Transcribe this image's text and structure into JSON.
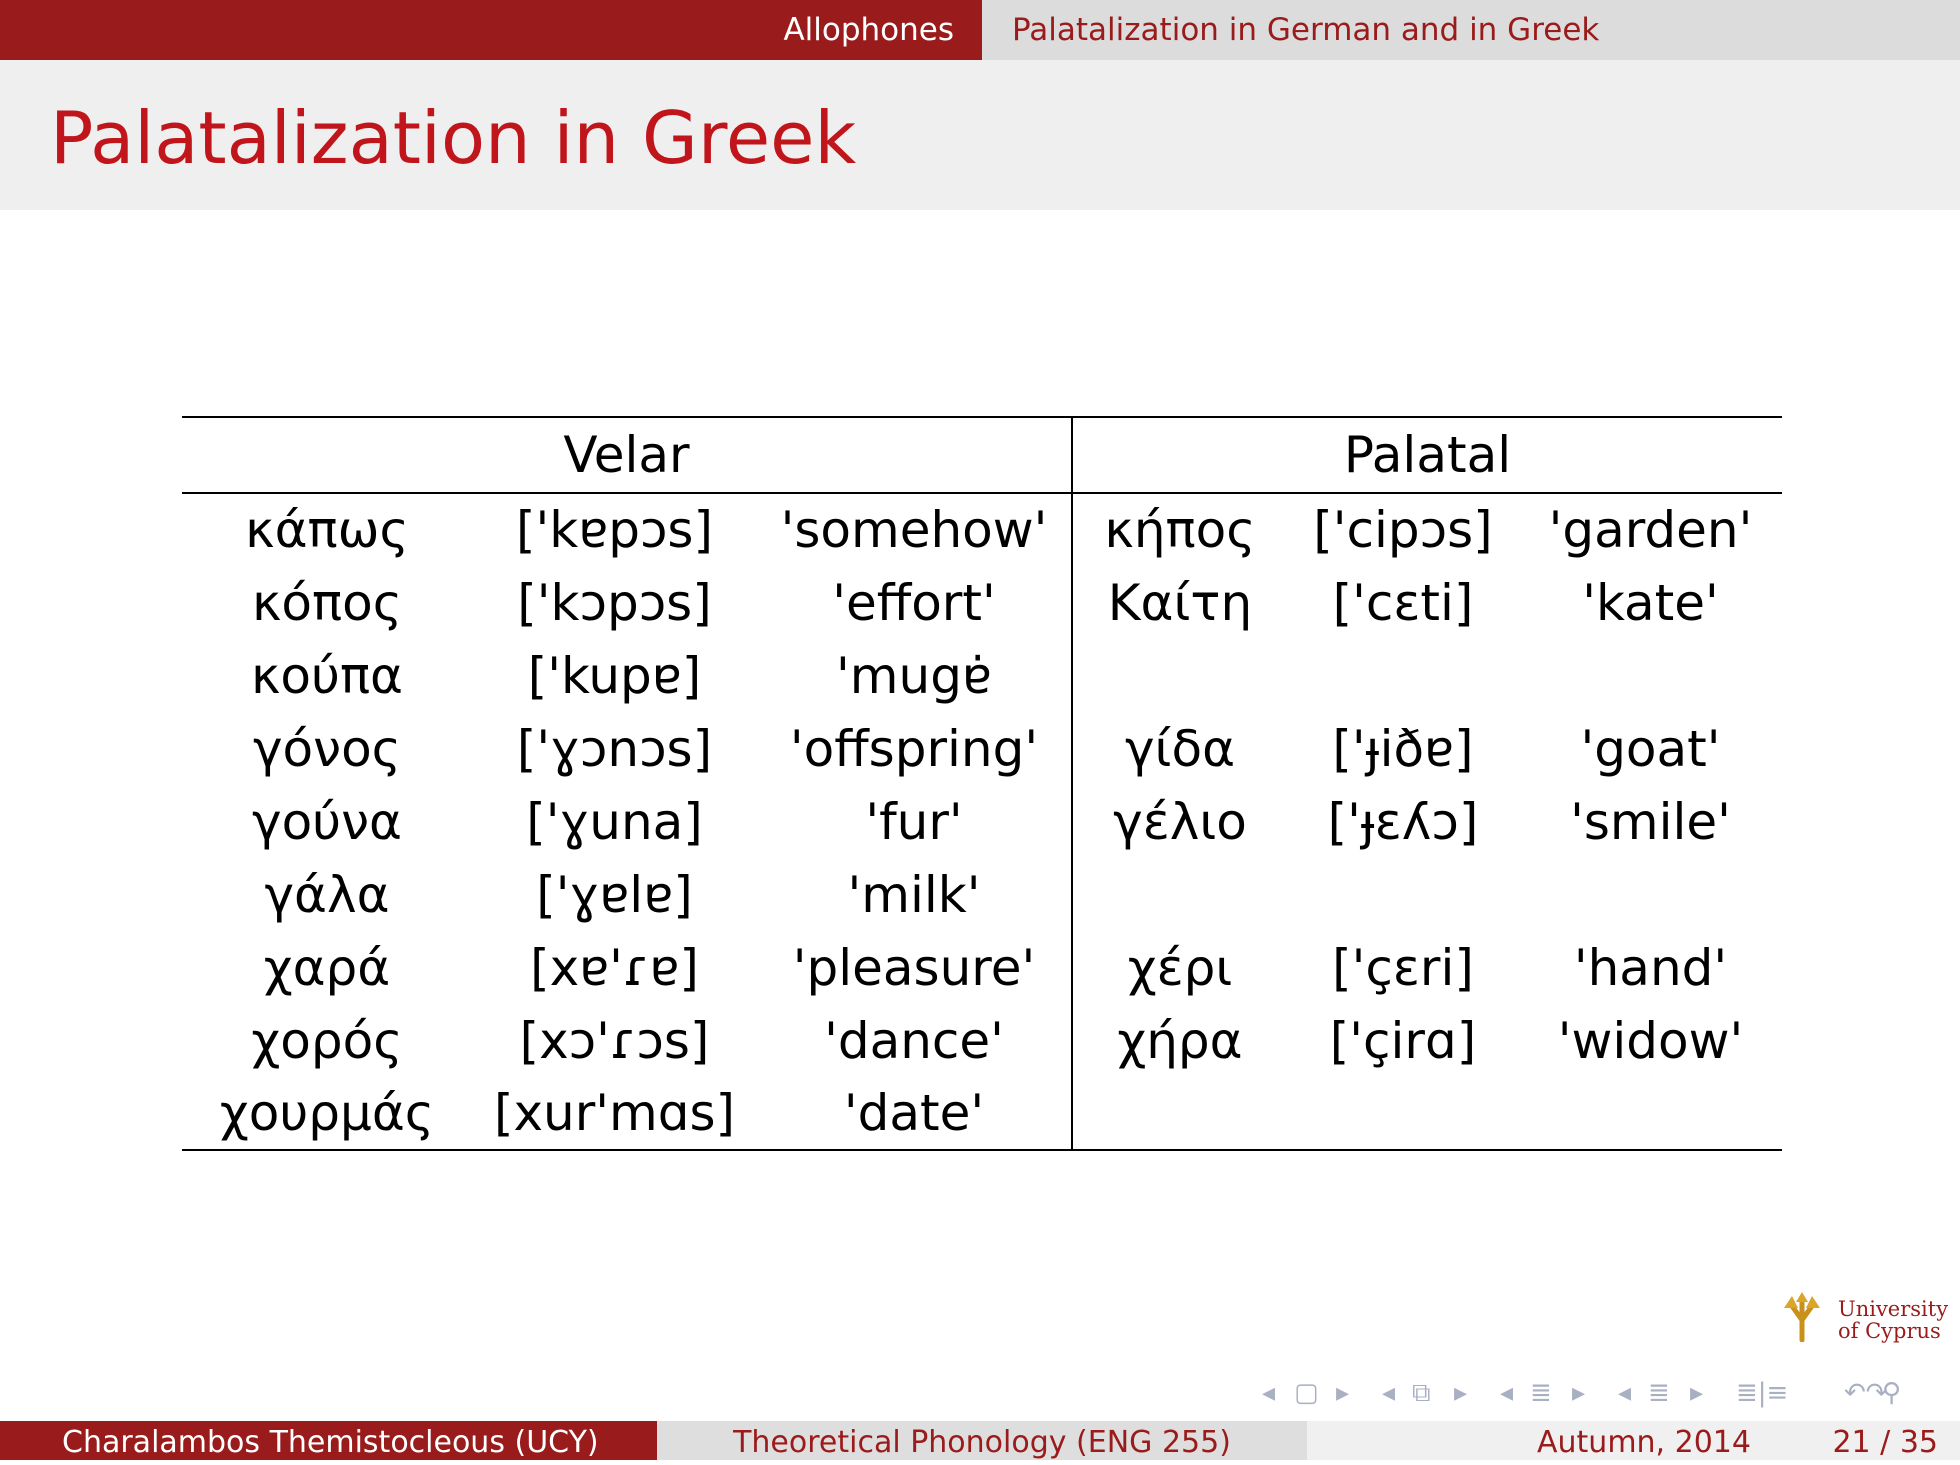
{
  "header": {
    "section": "Allophones",
    "subsection": "Palatalization in German and in Greek"
  },
  "slide": {
    "title": "Palatalization in Greek"
  },
  "table": {
    "headers": {
      "velar": "Velar",
      "palatal": "Palatal"
    },
    "rows": [
      {
        "velar": [
          "κάπως",
          "['kɐpɔs]",
          "'somehow'"
        ],
        "palatal": [
          "κήπος",
          "['cipɔs]",
          "'garden'"
        ]
      },
      {
        "velar": [
          "κόπος",
          "['kɔpɔs]",
          "'effort'"
        ],
        "palatal": [
          "Καίτη",
          "['cɛti]",
          "'kate'"
        ]
      },
      {
        "velar": [
          "κούπα",
          "['kupɐ]",
          "'mugɐ̇"
        ],
        "palatal": [
          "",
          "",
          ""
        ]
      },
      {
        "velar": [
          "γόνος",
          "['ɣɔnɔs]",
          "'offspring'"
        ],
        "palatal": [
          "γίδα",
          "['ɟiðɐ]",
          "'goat'"
        ]
      },
      {
        "velar": [
          "γούνα",
          "['ɣuna]",
          "'fur'"
        ],
        "palatal": [
          "γέλιο",
          "['ɟɛʎɔ]",
          "'smile'"
        ]
      },
      {
        "velar": [
          "γάλα",
          "['ɣɐlɐ]",
          "'milk'"
        ],
        "palatal": [
          "",
          "",
          ""
        ]
      },
      {
        "velar": [
          "χαρά",
          "[xɐ'ɾɐ]",
          "'pleasure'"
        ],
        "palatal": [
          "χέρι",
          "['çɛri]",
          "'hand'"
        ]
      },
      {
        "velar": [
          "χορός",
          "[xɔ'ɾɔs]",
          "'dance'"
        ],
        "palatal": [
          "χήρα",
          "['çirɑ]",
          "'widow'"
        ]
      },
      {
        "velar": [
          "χουρμάς",
          "[xur'mɑs]",
          "'date'"
        ],
        "palatal": [
          "",
          "",
          ""
        ]
      }
    ]
  },
  "footer": {
    "author": "Charalambos Themistocleous  (UCY)",
    "course": "Theoretical Phonology (ENG 255)",
    "date": "Autumn, 2014",
    "page": "21 / 35"
  },
  "logo": {
    "line1": "University",
    "line2": "of Cyprus"
  },
  "nav": {
    "icons": [
      "nav-prev-arrow-icon",
      "frame-icon",
      "nav-next-arrow-icon",
      "subsection-icon",
      "section-icon",
      "toc-icon",
      "search-icon"
    ],
    "color": "#a9b0c2"
  },
  "colors": {
    "accent": "#9a1b1b",
    "title": "#c0151b"
  }
}
